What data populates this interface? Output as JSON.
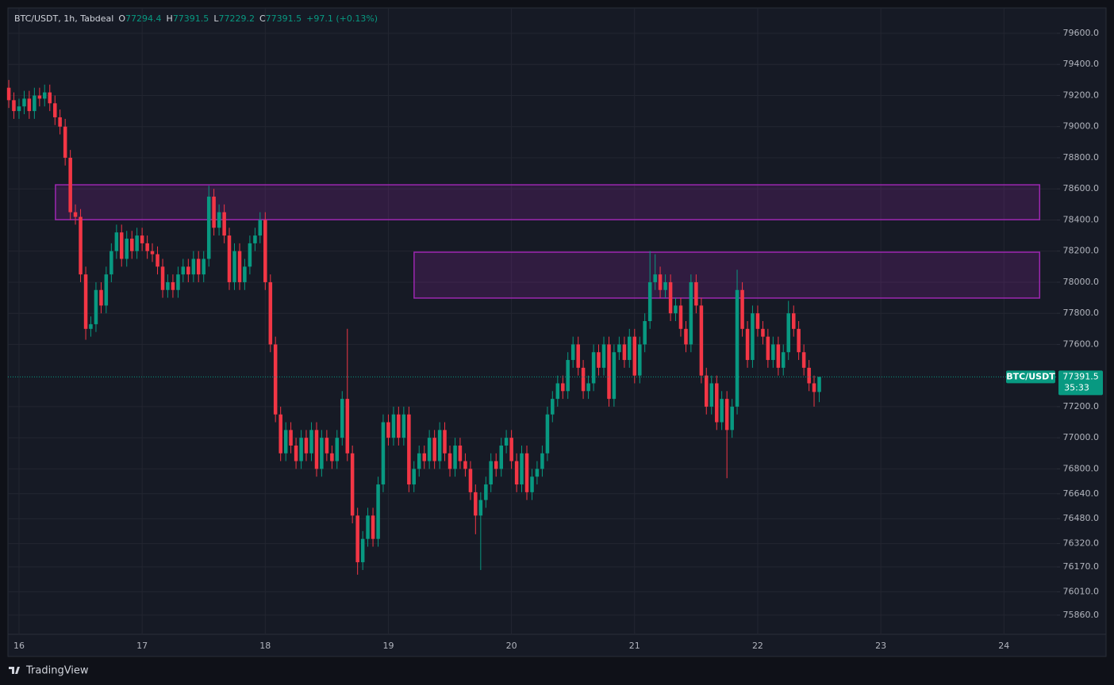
{
  "chart_data": {
    "type": "candlestick",
    "header": {
      "title": "BTC/USDT, 1h, Tabdeal",
      "o_label": "O",
      "h_label": "H",
      "l_label": "L",
      "c_label": "C",
      "change": "+97.1 (+0.13%)"
    },
    "symbol": "BTC/USDT",
    "countdown": "35:33",
    "brand": "TradingView",
    "up_color": "#089981",
    "down_color": "#f23645",
    "grid": true,
    "zone_color": "#9c27b0",
    "zones": [
      {
        "x": [
          16.296,
          24.29
        ],
        "y": [
          78402,
          78626
        ]
      },
      {
        "x": [
          19.209,
          24.29
        ],
        "y": [
          77898,
          78193
        ]
      }
    ],
    "xlim": [
      15.91,
      24.43
    ],
    "xticks": [
      16,
      17,
      18,
      19,
      20,
      21,
      22,
      23,
      24
    ],
    "ylim": [
      75737,
      79763
    ],
    "yticks": [
      {
        "value": 79600,
        "label": "79600.0"
      },
      {
        "value": 79400,
        "label": "79400.0"
      },
      {
        "value": 79200,
        "label": "79200.0"
      },
      {
        "value": 79000,
        "label": "79000.0"
      },
      {
        "value": 78800,
        "label": "78800.0"
      },
      {
        "value": 78600,
        "label": "78600.0"
      },
      {
        "value": 78400,
        "label": "78400.0"
      },
      {
        "value": 78200,
        "label": "78200.0"
      },
      {
        "value": 78000,
        "label": "78000.0"
      },
      {
        "value": 77800,
        "label": "77800.0"
      },
      {
        "value": 77600,
        "label": "77600.0"
      },
      {
        "value": 77200,
        "label": "77200.0"
      },
      {
        "value": 77000,
        "label": "77000.0"
      },
      {
        "value": 76800,
        "label": "76800.0"
      },
      {
        "value": 76640,
        "label": "76640.0"
      },
      {
        "value": 76480,
        "label": "76480.0"
      },
      {
        "value": 76320,
        "label": "76320.0"
      },
      {
        "value": 76170,
        "label": "76170.0"
      },
      {
        "value": 76010,
        "label": "76010.0"
      },
      {
        "value": 75860,
        "label": "75860.0"
      }
    ],
    "x": [
      15.917,
      15.958,
      16,
      16.042,
      16.083,
      16.125,
      16.167,
      16.208,
      16.25,
      16.292,
      16.333,
      16.375,
      16.417,
      16.458,
      16.5,
      16.542,
      16.583,
      16.625,
      16.667,
      16.708,
      16.75,
      16.792,
      16.833,
      16.875,
      16.917,
      16.958,
      17,
      17.042,
      17.083,
      17.125,
      17.167,
      17.208,
      17.25,
      17.292,
      17.333,
      17.375,
      17.417,
      17.458,
      17.5,
      17.542,
      17.583,
      17.625,
      17.667,
      17.708,
      17.75,
      17.792,
      17.833,
      17.875,
      17.917,
      17.958,
      18,
      18.042,
      18.083,
      18.125,
      18.167,
      18.208,
      18.25,
      18.292,
      18.333,
      18.375,
      18.417,
      18.458,
      18.5,
      18.542,
      18.583,
      18.625,
      18.667,
      18.708,
      18.75,
      18.792,
      18.833,
      18.875,
      18.917,
      18.958,
      19,
      19.042,
      19.083,
      19.125,
      19.167,
      19.208,
      19.25,
      19.292,
      19.333,
      19.375,
      19.417,
      19.458,
      19.5,
      19.542,
      19.583,
      19.625,
      19.667,
      19.708,
      19.75,
      19.792,
      19.833,
      19.875,
      19.917,
      19.958,
      20,
      20.042,
      20.083,
      20.125,
      20.167,
      20.208,
      20.25,
      20.292,
      20.333,
      20.375,
      20.417,
      20.458,
      20.5,
      20.542,
      20.583,
      20.625,
      20.667,
      20.708,
      20.75,
      20.792,
      20.833,
      20.875,
      20.917,
      20.958,
      21,
      21.042,
      21.083,
      21.125,
      21.167,
      21.208,
      21.25,
      21.292,
      21.333,
      21.375,
      21.417,
      21.458,
      21.5,
      21.542,
      21.583,
      21.625,
      21.667,
      21.708,
      21.75,
      21.792,
      21.833,
      21.875,
      21.917,
      21.958,
      22,
      22.042,
      22.083,
      22.125,
      22.167,
      22.208,
      22.25,
      22.292,
      22.333,
      22.375,
      22.417,
      22.458,
      22.5
    ],
    "open": [
      79250,
      79170,
      79100,
      79130,
      79180,
      79100,
      79200,
      79180,
      79220,
      79150,
      79060,
      79000,
      78800,
      78450,
      78420,
      78050,
      77700,
      77730,
      77950,
      77850,
      78050,
      78200,
      78320,
      78150,
      78280,
      78200,
      78300,
      78250,
      78200,
      78180,
      78100,
      77950,
      78000,
      77950,
      78050,
      78100,
      78050,
      78150,
      78050,
      78150,
      78550,
      78350,
      78450,
      78300,
      78000,
      78200,
      78000,
      78100,
      78250,
      78300,
      78400,
      78000,
      77600,
      77150,
      76900,
      77050,
      76950,
      76850,
      77000,
      76900,
      77050,
      76800,
      77000,
      76900,
      76850,
      77000,
      77250,
      76900,
      76500,
      76200,
      76350,
      76500,
      76350,
      76700,
      77100,
      77000,
      77150,
      77000,
      77150,
      76700,
      76800,
      76900,
      76850,
      77000,
      76850,
      77050,
      76900,
      76800,
      76950,
      76850,
      76800,
      76650,
      76500,
      76600,
      76700,
      76850,
      76800,
      76950,
      77000,
      76850,
      76700,
      76900,
      76650,
      76750,
      76800,
      76900,
      77150,
      77250,
      77350,
      77300,
      77500,
      77600,
      77450,
      77300,
      77350,
      77550,
      77450,
      77600,
      77250,
      77550,
      77600,
      77500,
      77650,
      77400,
      77600,
      77750,
      78000,
      78050,
      77950,
      78000,
      77800,
      77850,
      77700,
      77600,
      78000,
      77850,
      77400,
      77200,
      77350,
      77100,
      77250,
      77050,
      77200,
      77950,
      77700,
      77500,
      77800,
      77700,
      77650,
      77500,
      77600,
      77450,
      77550,
      77800,
      77700,
      77550,
      77450,
      77350,
      77294.4
    ],
    "high": [
      79300,
      79220,
      79180,
      79230,
      79230,
      79250,
      79250,
      79270,
      79270,
      79200,
      79110,
      79050,
      78850,
      78500,
      78470,
      78100,
      77780,
      78000,
      78000,
      78100,
      78250,
      78370,
      78370,
      78330,
      78330,
      78350,
      78350,
      78300,
      78250,
      78230,
      78150,
      78050,
      78050,
      78100,
      78150,
      78150,
      78200,
      78200,
      78200,
      78620,
      78600,
      78500,
      78500,
      78350,
      78250,
      78250,
      78150,
      78300,
      78350,
      78450,
      78450,
      78050,
      77650,
      77200,
      77100,
      77100,
      77000,
      77050,
      77050,
      77100,
      77100,
      77050,
      77050,
      76950,
      77050,
      77300,
      77700,
      76950,
      76550,
      76400,
      76550,
      76550,
      76750,
      77150,
      77150,
      77200,
      77200,
      77200,
      77200,
      76850,
      76950,
      76950,
      77050,
      77050,
      77100,
      77100,
      76950,
      77000,
      77000,
      76900,
      76850,
      76700,
      76650,
      76750,
      76900,
      76900,
      77000,
      77050,
      77050,
      76900,
      76950,
      76950,
      76800,
      76850,
      76950,
      77200,
      77300,
      77400,
      77400,
      77550,
      77650,
      77650,
      77500,
      77400,
      77600,
      77600,
      77650,
      77650,
      77600,
      77650,
      77650,
      77700,
      77700,
      77650,
      77800,
      78200,
      78180,
      78100,
      78050,
      78050,
      77900,
      77900,
      77750,
      78050,
      78050,
      77900,
      77450,
      77400,
      77400,
      77300,
      77300,
      77250,
      78080,
      78000,
      77750,
      77850,
      77850,
      77750,
      77700,
      77650,
      77650,
      77600,
      77880,
      77850,
      77750,
      77600,
      77500,
      77400,
      77391.5
    ],
    "low": [
      79120,
      79050,
      79050,
      79080,
      79050,
      79050,
      79130,
      79130,
      79100,
      79010,
      78950,
      78750,
      78400,
      78370,
      78000,
      77630,
      77650,
      77680,
      77800,
      77800,
      78000,
      78150,
      78100,
      78100,
      78150,
      78150,
      78200,
      78150,
      78130,
      78050,
      77900,
      77900,
      77900,
      77900,
      78000,
      78000,
      78000,
      78000,
      78000,
      78100,
      78300,
      78300,
      78250,
      77950,
      77950,
      77950,
      77950,
      78050,
      78200,
      78250,
      77950,
      77550,
      77100,
      76850,
      76850,
      76900,
      76800,
      76800,
      76850,
      76850,
      76750,
      76750,
      76850,
      76800,
      76800,
      76950,
      76850,
      76450,
      76120,
      76150,
      76300,
      76300,
      76300,
      76650,
      76950,
      76950,
      76950,
      76950,
      76650,
      76650,
      76750,
      76800,
      76800,
      76800,
      76800,
      76850,
      76750,
      76750,
      76800,
      76750,
      76600,
      76380,
      76150,
      76550,
      76650,
      76750,
      76750,
      76900,
      76800,
      76650,
      76650,
      76600,
      76600,
      76700,
      76750,
      76850,
      77100,
      77200,
      77250,
      77250,
      77450,
      77400,
      77250,
      77250,
      77300,
      77400,
      77400,
      77200,
      77200,
      77500,
      77450,
      77450,
      77350,
      77350,
      77550,
      77700,
      77950,
      77900,
      77900,
      77750,
      77750,
      77650,
      77550,
      77550,
      77800,
      77350,
      77150,
      77150,
      77050,
      77050,
      76740,
      77000,
      77150,
      77650,
      77450,
      77450,
      77650,
      77600,
      77450,
      77450,
      77400,
      77400,
      77500,
      77650,
      77500,
      77400,
      77300,
      77200,
      77229.2
    ],
    "close": [
      79170,
      79100,
      79130,
      79180,
      79100,
      79200,
      79180,
      79220,
      79150,
      79060,
      79000,
      78800,
      78450,
      78420,
      78050,
      77700,
      77730,
      77950,
      77850,
      78050,
      78200,
      78320,
      78150,
      78280,
      78200,
      78300,
      78250,
      78200,
      78180,
      78100,
      77950,
      78000,
      77950,
      78050,
      78100,
      78050,
      78150,
      78050,
      78150,
      78550,
      78350,
      78450,
      78300,
      78000,
      78200,
      78000,
      78100,
      78250,
      78300,
      78400,
      78000,
      77600,
      77150,
      76900,
      77050,
      76950,
      76850,
      77000,
      76900,
      77050,
      76800,
      77000,
      76900,
      76850,
      77000,
      77250,
      76900,
      76500,
      76200,
      76350,
      76500,
      76350,
      76700,
      77100,
      77000,
      77150,
      77000,
      77150,
      76700,
      76800,
      76900,
      76850,
      77000,
      76850,
      77050,
      76900,
      76800,
      76950,
      76850,
      76800,
      76650,
      76500,
      76600,
      76700,
      76850,
      76800,
      76950,
      77000,
      76850,
      76700,
      76900,
      76650,
      76750,
      76800,
      76900,
      77150,
      77250,
      77350,
      77300,
      77500,
      77600,
      77450,
      77300,
      77350,
      77550,
      77450,
      77600,
      77250,
      77550,
      77600,
      77500,
      77650,
      77400,
      77600,
      77750,
      78000,
      78050,
      77950,
      78000,
      77800,
      77850,
      77700,
      77600,
      78000,
      77850,
      77400,
      77200,
      77350,
      77100,
      77250,
      77050,
      77200,
      77950,
      77700,
      77500,
      77800,
      77700,
      77650,
      77500,
      77600,
      77450,
      77550,
      77800,
      77700,
      77550,
      77450,
      77350,
      77294.4,
      77391.5
    ]
  }
}
